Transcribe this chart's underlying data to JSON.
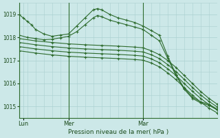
{
  "xlabel": "Pression niveau de la mer( hPa )",
  "bg_color": "#cce8e8",
  "grid_color": "#aad0d0",
  "line_color": "#2d6b2d",
  "marker_color": "#2d6b2d",
  "vline_color": "#2d6b2d",
  "label_color": "#1a4a1a",
  "ylim": [
    1014.5,
    1019.5
  ],
  "yticks": [
    1015,
    1016,
    1017,
    1018,
    1019
  ],
  "xlim": [
    0,
    96
  ],
  "xtick_positions": [
    2,
    24,
    60
  ],
  "xtick_labels": [
    "Lun",
    "Mer",
    "Mar"
  ],
  "vlines": [
    0,
    24,
    60
  ],
  "series": [
    {
      "x": [
        0,
        2,
        4,
        6,
        8,
        12,
        16,
        20,
        24,
        28,
        32,
        36,
        38,
        40,
        44,
        48,
        52,
        56,
        60,
        64,
        68,
        72,
        76,
        80,
        84,
        88,
        92,
        96
      ],
      "y": [
        1019.0,
        1018.85,
        1018.7,
        1018.55,
        1018.35,
        1018.15,
        1018.05,
        1018.1,
        1018.15,
        1018.5,
        1018.85,
        1019.2,
        1019.25,
        1019.2,
        1019.0,
        1018.85,
        1018.75,
        1018.65,
        1018.5,
        1018.3,
        1018.1,
        1017.2,
        1016.4,
        1015.8,
        1015.4,
        1015.2,
        1015.1,
        1014.88
      ]
    },
    {
      "x": [
        0,
        4,
        8,
        12,
        16,
        20,
        24,
        28,
        32,
        36,
        38,
        40,
        44,
        48,
        52,
        56,
        60,
        64,
        68,
        72,
        76,
        80,
        84,
        88,
        92,
        96
      ],
      "y": [
        1018.1,
        1018.0,
        1017.95,
        1017.9,
        1017.92,
        1017.98,
        1018.05,
        1018.25,
        1018.55,
        1018.85,
        1018.95,
        1018.9,
        1018.75,
        1018.65,
        1018.55,
        1018.45,
        1018.35,
        1018.1,
        1017.85,
        1017.1,
        1016.35,
        1015.75,
        1015.35,
        1015.15,
        1015.05,
        1014.85
      ]
    },
    {
      "x": [
        0,
        8,
        16,
        24,
        32,
        40,
        48,
        56,
        60,
        64,
        68,
        72,
        76,
        80,
        84,
        88,
        92,
        96
      ],
      "y": [
        1017.95,
        1017.85,
        1017.78,
        1017.72,
        1017.68,
        1017.65,
        1017.62,
        1017.58,
        1017.55,
        1017.42,
        1017.25,
        1017.0,
        1016.7,
        1016.35,
        1016.0,
        1015.65,
        1015.35,
        1015.1
      ]
    },
    {
      "x": [
        0,
        8,
        16,
        24,
        32,
        40,
        48,
        56,
        60,
        64,
        68,
        72,
        76,
        80,
        84,
        88,
        92,
        96
      ],
      "y": [
        1017.78,
        1017.68,
        1017.6,
        1017.54,
        1017.5,
        1017.47,
        1017.44,
        1017.4,
        1017.37,
        1017.25,
        1017.08,
        1016.82,
        1016.52,
        1016.18,
        1015.83,
        1015.5,
        1015.22,
        1014.98
      ]
    },
    {
      "x": [
        0,
        8,
        16,
        24,
        32,
        40,
        48,
        56,
        60,
        64,
        68,
        72,
        76,
        80,
        84,
        88,
        92,
        96
      ],
      "y": [
        1017.6,
        1017.5,
        1017.42,
        1017.36,
        1017.32,
        1017.29,
        1017.26,
        1017.22,
        1017.19,
        1017.07,
        1016.9,
        1016.64,
        1016.35,
        1016.0,
        1015.66,
        1015.35,
        1015.08,
        1014.85
      ]
    },
    {
      "x": [
        0,
        8,
        16,
        24,
        32,
        40,
        48,
        56,
        60,
        64,
        68,
        72,
        76,
        80,
        84,
        88,
        92,
        96
      ],
      "y": [
        1017.42,
        1017.32,
        1017.24,
        1017.18,
        1017.14,
        1017.11,
        1017.08,
        1017.04,
        1017.01,
        1016.89,
        1016.72,
        1016.46,
        1016.17,
        1015.82,
        1015.49,
        1015.19,
        1014.93,
        1014.72
      ]
    }
  ]
}
